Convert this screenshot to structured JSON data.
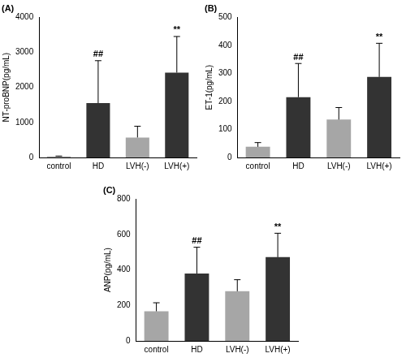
{
  "chart_data": [
    {
      "type": "bar",
      "title": "(A)",
      "y_label": "NT-proBNP(pg/mL)",
      "categories": [
        "control",
        "HD",
        "LVH(-)",
        "LVH(+)"
      ],
      "values": [
        30,
        1550,
        570,
        2420
      ],
      "errors": [
        10,
        1210,
        320,
        1030
      ],
      "colors": [
        "#a6a6a6",
        "#333333",
        "#a6a6a6",
        "#333333"
      ],
      "ylim": [
        0,
        4000
      ],
      "yticks": [
        0,
        1000,
        2000,
        3000,
        4000
      ],
      "grid": false,
      "annotations": [
        {
          "text": "##",
          "category": "HD"
        },
        {
          "text": "**",
          "category": "LVH(+)"
        }
      ]
    },
    {
      "type": "bar",
      "title": "(B)",
      "y_label": "ET-1(pg/mL)",
      "categories": [
        "control",
        "HD",
        "LVH(-)",
        "LVH(+)"
      ],
      "values": [
        38,
        215,
        135,
        287
      ],
      "errors": [
        15,
        120,
        43,
        120
      ],
      "colors": [
        "#a6a6a6",
        "#333333",
        "#a6a6a6",
        "#333333"
      ],
      "ylim": [
        0,
        500
      ],
      "yticks": [
        0,
        100,
        200,
        300,
        400,
        500
      ],
      "grid": false,
      "annotations": [
        {
          "text": "##",
          "category": "HD"
        },
        {
          "text": "**",
          "category": "LVH(+)"
        }
      ]
    },
    {
      "type": "bar",
      "title": "(C)",
      "y_label": "ANP(pg/mL)",
      "categories": [
        "control",
        "HD",
        "LVH(-)",
        "LVH(+)"
      ],
      "values": [
        167,
        380,
        280,
        472
      ],
      "errors": [
        48,
        148,
        65,
        135
      ],
      "colors": [
        "#a6a6a6",
        "#333333",
        "#a6a6a6",
        "#333333"
      ],
      "ylim": [
        0,
        800
      ],
      "yticks": [
        0,
        200,
        400,
        600,
        800
      ],
      "grid": false,
      "annotations": [
        {
          "text": "##",
          "category": "HD"
        },
        {
          "text": "**",
          "category": "LVH(+)"
        }
      ]
    }
  ]
}
